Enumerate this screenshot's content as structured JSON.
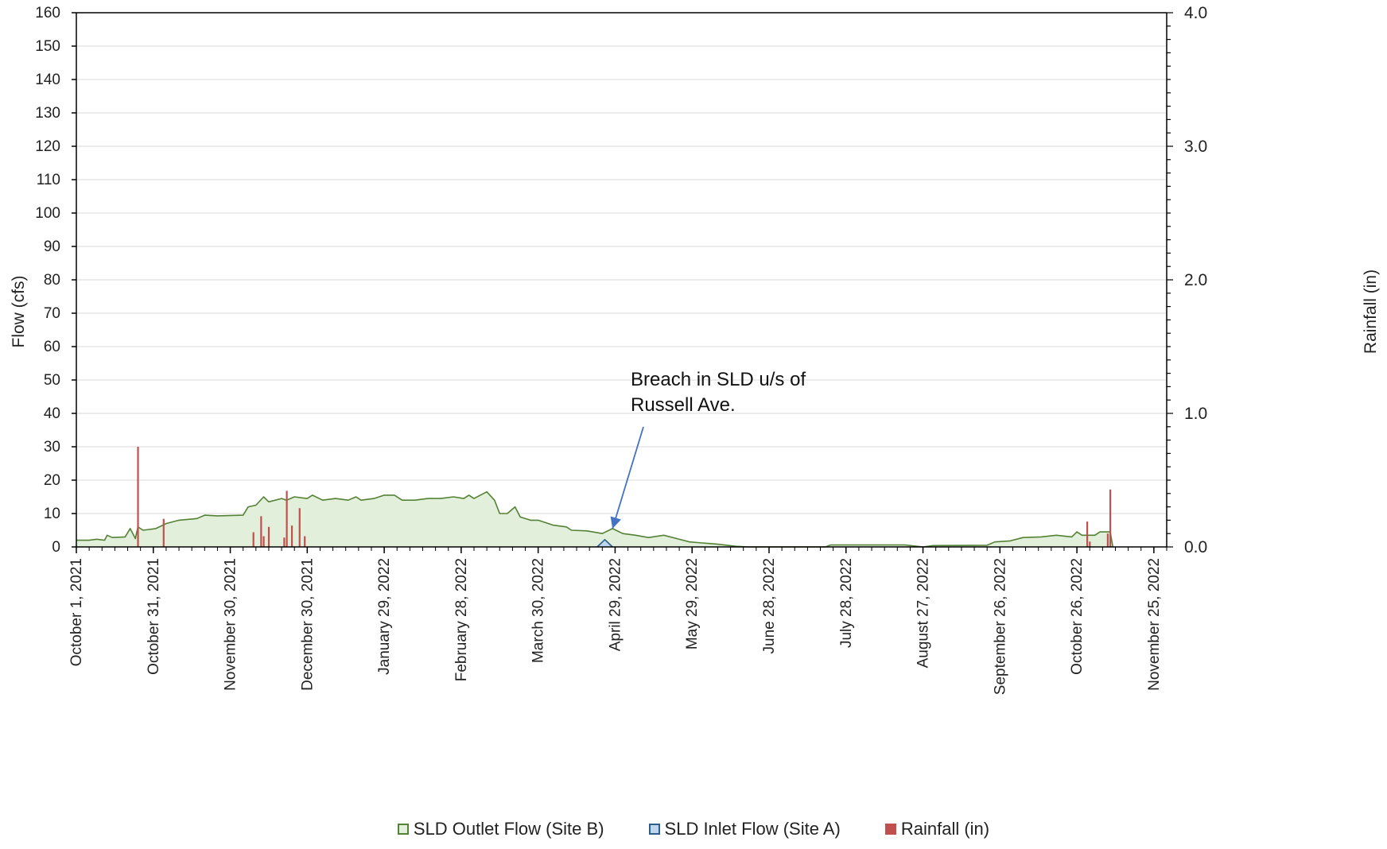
{
  "chart_data": {
    "type": "area",
    "xlabel": "",
    "ylabel": "Flow  (cfs)",
    "y2label": "Rainfall (in)",
    "ylim": [
      0,
      160
    ],
    "y2lim": [
      0,
      4.0
    ],
    "xlim": [
      "2021-10-01",
      "2022-11-30"
    ],
    "yticks": [
      "0",
      "10",
      "20",
      "30",
      "40",
      "50",
      "60",
      "70",
      "80",
      "90",
      "100",
      "110",
      "120",
      "130",
      "140",
      "150",
      "160"
    ],
    "y2ticks": [
      "0.0",
      "1.0",
      "2.0",
      "3.0",
      "4.0"
    ],
    "xticks": [
      {
        "date": "2021-10-01",
        "label": "October 1, 2021"
      },
      {
        "date": "2021-10-31",
        "label": "October 31, 2021"
      },
      {
        "date": "2021-11-30",
        "label": "November 30, 2021"
      },
      {
        "date": "2021-12-30",
        "label": "December 30, 2021"
      },
      {
        "date": "2022-01-29",
        "label": "January 29, 2022"
      },
      {
        "date": "2022-02-28",
        "label": "February 28, 2022"
      },
      {
        "date": "2022-03-30",
        "label": "March 30, 2022"
      },
      {
        "date": "2022-04-29",
        "label": "April 29, 2022"
      },
      {
        "date": "2022-05-29",
        "label": "May 29, 2022"
      },
      {
        "date": "2022-06-28",
        "label": "June 28, 2022"
      },
      {
        "date": "2022-07-28",
        "label": "July 28, 2022"
      },
      {
        "date": "2022-08-27",
        "label": "August 27, 2022"
      },
      {
        "date": "2022-09-26",
        "label": "September 26, 2022"
      },
      {
        "date": "2022-10-26",
        "label": "October 26, 2022"
      },
      {
        "date": "2022-11-25",
        "label": "November 25, 2022"
      }
    ],
    "grid": true,
    "legend_position": "bottom",
    "series": [
      {
        "name": "SLD Outlet Flow (Site B)",
        "type": "area",
        "axis": "left",
        "line_color": "#548235",
        "fill_color": "#e2efda",
        "points": [
          [
            "2021-10-01",
            2
          ],
          [
            "2021-10-06",
            2
          ],
          [
            "2021-10-09",
            2.3
          ],
          [
            "2021-10-12",
            2
          ],
          [
            "2021-10-13",
            3.5
          ],
          [
            "2021-10-15",
            2.8
          ],
          [
            "2021-10-20",
            3
          ],
          [
            "2021-10-22",
            5.5
          ],
          [
            "2021-10-24",
            2.5
          ],
          [
            "2021-10-25",
            6
          ],
          [
            "2021-10-27",
            5
          ],
          [
            "2021-11-01",
            5.5
          ],
          [
            "2021-11-05",
            7
          ],
          [
            "2021-11-10",
            8
          ],
          [
            "2021-11-17",
            8.5
          ],
          [
            "2021-11-20",
            9.5
          ],
          [
            "2021-11-25",
            9.3
          ],
          [
            "2021-12-05",
            9.5
          ],
          [
            "2021-12-07",
            12
          ],
          [
            "2021-12-10",
            12.5
          ],
          [
            "2021-12-13",
            15
          ],
          [
            "2021-12-15",
            13.5
          ],
          [
            "2021-12-20",
            14.5
          ],
          [
            "2021-12-22",
            14
          ],
          [
            "2021-12-25",
            15
          ],
          [
            "2021-12-30",
            14.5
          ],
          [
            "2022-01-01",
            15.5
          ],
          [
            "2022-01-05",
            14
          ],
          [
            "2022-01-10",
            14.5
          ],
          [
            "2022-01-15",
            14
          ],
          [
            "2022-01-18",
            15
          ],
          [
            "2022-01-20",
            14
          ],
          [
            "2022-01-25",
            14.5
          ],
          [
            "2022-01-29",
            15.5
          ],
          [
            "2022-02-02",
            15.5
          ],
          [
            "2022-02-05",
            14
          ],
          [
            "2022-02-10",
            14
          ],
          [
            "2022-02-15",
            14.5
          ],
          [
            "2022-02-20",
            14.5
          ],
          [
            "2022-02-25",
            15
          ],
          [
            "2022-03-01",
            14.5
          ],
          [
            "2022-03-03",
            15.5
          ],
          [
            "2022-03-05",
            14.5
          ],
          [
            "2022-03-10",
            16.5
          ],
          [
            "2022-03-13",
            14
          ],
          [
            "2022-03-15",
            10
          ],
          [
            "2022-03-18",
            10
          ],
          [
            "2022-03-21",
            12
          ],
          [
            "2022-03-23",
            9
          ],
          [
            "2022-03-27",
            8
          ],
          [
            "2022-03-30",
            8
          ],
          [
            "2022-04-05",
            6.5
          ],
          [
            "2022-04-10",
            6
          ],
          [
            "2022-04-12",
            5
          ],
          [
            "2022-04-18",
            4.8
          ],
          [
            "2022-04-24",
            4
          ],
          [
            "2022-04-28",
            5.5
          ],
          [
            "2022-05-02",
            4
          ],
          [
            "2022-05-07",
            3.5
          ],
          [
            "2022-05-12",
            2.8
          ],
          [
            "2022-05-18",
            3.5
          ],
          [
            "2022-05-23",
            2.5
          ],
          [
            "2022-05-28",
            1.5
          ],
          [
            "2022-06-02",
            1.2
          ],
          [
            "2022-06-08",
            0.8
          ],
          [
            "2022-06-15",
            0.2
          ],
          [
            "2022-06-20",
            0
          ],
          [
            "2022-07-20",
            0
          ],
          [
            "2022-07-22",
            0.6
          ],
          [
            "2022-08-20",
            0.6
          ],
          [
            "2022-08-27",
            0
          ],
          [
            "2022-08-31",
            0.4
          ],
          [
            "2022-09-21",
            0.5
          ],
          [
            "2022-09-24",
            1.5
          ],
          [
            "2022-09-30",
            1.8
          ],
          [
            "2022-10-05",
            2.8
          ],
          [
            "2022-10-12",
            3
          ],
          [
            "2022-10-18",
            3.5
          ],
          [
            "2022-10-24",
            3
          ],
          [
            "2022-10-26",
            4.5
          ],
          [
            "2022-10-28",
            3.5
          ],
          [
            "2022-11-02",
            3.5
          ],
          [
            "2022-11-04",
            4.5
          ],
          [
            "2022-11-08",
            4.5
          ],
          [
            "2022-11-09",
            0
          ]
        ]
      },
      {
        "name": "SLD Inlet Flow (Site A)",
        "type": "area",
        "axis": "left",
        "line_color": "#2e5f8a",
        "fill_color": "#bdd7ee",
        "points": [
          [
            "2022-04-22",
            0
          ],
          [
            "2022-04-25",
            2.2
          ],
          [
            "2022-04-28",
            0
          ]
        ]
      },
      {
        "name": "Rainfall (in)",
        "type": "bar",
        "axis": "right",
        "color": "#c0504d",
        "points": [
          [
            "2021-10-25",
            0.75
          ],
          [
            "2021-11-04",
            0.21
          ],
          [
            "2021-12-09",
            0.11
          ],
          [
            "2021-12-12",
            0.23
          ],
          [
            "2021-12-13",
            0.08
          ],
          [
            "2021-12-15",
            0.15
          ],
          [
            "2021-12-21",
            0.07
          ],
          [
            "2021-12-22",
            0.42
          ],
          [
            "2021-12-24",
            0.16
          ],
          [
            "2021-12-27",
            0.29
          ],
          [
            "2021-12-29",
            0.08
          ],
          [
            "2022-10-30",
            0.19
          ],
          [
            "2022-10-31",
            0.04
          ],
          [
            "2022-11-07",
            0.1
          ],
          [
            "2022-11-08",
            0.43
          ]
        ]
      }
    ],
    "annotations": [
      {
        "lines": [
          "Breach in SLD u/s of",
          "Russell Ave."
        ],
        "target_date": "2022-04-28",
        "target_value": 5.5
      }
    ]
  }
}
